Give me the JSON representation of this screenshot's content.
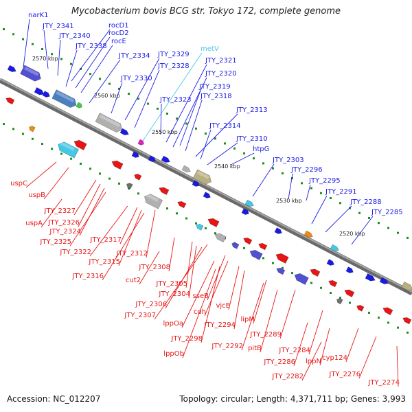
{
  "title": "Mycobacterium bovis BCG str. Tokyo 172, complete genome",
  "footer": {
    "accession": "Accession: NC_012207",
    "stats": "Topology: circular; Length: 4,371,711 bp; Genes: 3,993"
  },
  "colors": {
    "forward_gene": "#1a1ae6",
    "reverse_gene": "#e81515",
    "trna": "#45c8e6",
    "backbone": "#808080",
    "gc_dots": "#1e8c1e"
  },
  "kbp_marks": [
    "2570 kbp",
    "2560 kbp",
    "2550 kbp",
    "2540 kbp",
    "2530 kbp",
    "2520 kbp"
  ],
  "labels": [
    {
      "text": "narK1",
      "color": "blue"
    },
    {
      "text": "JTY_2341",
      "color": "blue"
    },
    {
      "text": "JTY_2340",
      "color": "blue"
    },
    {
      "text": "JTY_2338",
      "color": "blue"
    },
    {
      "text": "rocD1",
      "color": "blue"
    },
    {
      "text": "rocD2",
      "color": "blue"
    },
    {
      "text": "rocE",
      "color": "blue"
    },
    {
      "text": "JTY_2334",
      "color": "blue"
    },
    {
      "text": "JTY_2330",
      "color": "blue"
    },
    {
      "text": "JTY_2329",
      "color": "blue"
    },
    {
      "text": "JTY_2328",
      "color": "blue"
    },
    {
      "text": "metV",
      "color": "cyan"
    },
    {
      "text": "JTY_2321",
      "color": "blue"
    },
    {
      "text": "JTY_2320",
      "color": "blue"
    },
    {
      "text": "JTY_2319",
      "color": "blue"
    },
    {
      "text": "JTY_2318",
      "color": "blue"
    },
    {
      "text": "JTY_2323",
      "color": "blue"
    },
    {
      "text": "JTY_2313",
      "color": "blue"
    },
    {
      "text": "JTY_2314",
      "color": "blue"
    },
    {
      "text": "JTY_2310",
      "color": "blue"
    },
    {
      "text": "htpG",
      "color": "blue"
    },
    {
      "text": "JTY_2303",
      "color": "blue"
    },
    {
      "text": "JTY_2296",
      "color": "blue"
    },
    {
      "text": "JTY_2295",
      "color": "blue"
    },
    {
      "text": "JTY_2291",
      "color": "blue"
    },
    {
      "text": "JTY_2288",
      "color": "blue"
    },
    {
      "text": "JTY_2285",
      "color": "blue"
    },
    {
      "text": "uspC",
      "color": "red"
    },
    {
      "text": "uspB",
      "color": "red"
    },
    {
      "text": "JTY_2327",
      "color": "red"
    },
    {
      "text": "JTY_2326",
      "color": "red"
    },
    {
      "text": "uspA",
      "color": "red"
    },
    {
      "text": "JTY_2324",
      "color": "red"
    },
    {
      "text": "JTY_2325",
      "color": "red"
    },
    {
      "text": "JTY_2322",
      "color": "red"
    },
    {
      "text": "JTY_2317",
      "color": "red"
    },
    {
      "text": "JTY_2315",
      "color": "red"
    },
    {
      "text": "JTY_2316",
      "color": "red"
    },
    {
      "text": "JTY_2312",
      "color": "red"
    },
    {
      "text": "JTY_2308",
      "color": "red"
    },
    {
      "text": "cut2",
      "color": "red"
    },
    {
      "text": "JTY_2305",
      "color": "red"
    },
    {
      "text": "JTY_2304",
      "color": "red"
    },
    {
      "text": "JTY_2306",
      "color": "red"
    },
    {
      "text": "JTY_2307",
      "color": "red"
    },
    {
      "text": "sseB",
      "color": "red"
    },
    {
      "text": "cdh",
      "color": "red"
    },
    {
      "text": "vjcE",
      "color": "red"
    },
    {
      "text": "lppOa",
      "color": "red"
    },
    {
      "text": "JTY_2294",
      "color": "red"
    },
    {
      "text": "JTY_2298",
      "color": "red"
    },
    {
      "text": "lppOb",
      "color": "red"
    },
    {
      "text": "lipM",
      "color": "red"
    },
    {
      "text": "JTY_2292",
      "color": "red"
    },
    {
      "text": "pitB",
      "color": "red"
    },
    {
      "text": "JTY_2289",
      "color": "red"
    },
    {
      "text": "JTY_2284",
      "color": "red"
    },
    {
      "text": "JTY_2286",
      "color": "red"
    },
    {
      "text": "lppN",
      "color": "red"
    },
    {
      "text": "cyp124",
      "color": "red"
    },
    {
      "text": "JTY_2282",
      "color": "red"
    },
    {
      "text": "JTY_2276",
      "color": "red"
    },
    {
      "text": "JTY_2274",
      "color": "red"
    }
  ]
}
